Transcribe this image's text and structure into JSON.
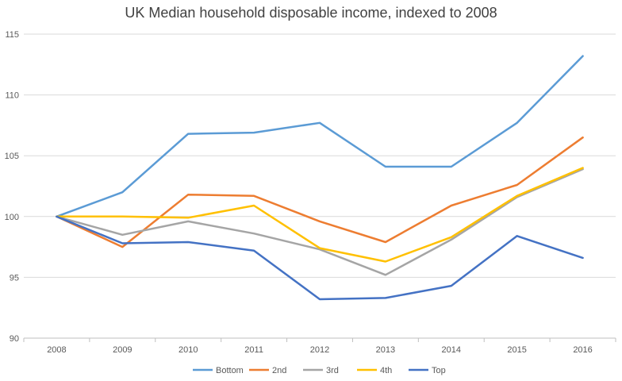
{
  "chart_data": {
    "type": "line",
    "title": "UK Median household disposable income, indexed to 2008",
    "xlabel": "",
    "ylabel": "",
    "categories": [
      "2008",
      "2009",
      "2010",
      "2011",
      "2012",
      "2013",
      "2014",
      "2015",
      "2016"
    ],
    "ylim": [
      90,
      115
    ],
    "yticks": [
      90,
      95,
      100,
      105,
      110,
      115
    ],
    "grid": true,
    "legend_position": "bottom",
    "series": [
      {
        "name": "Bottom",
        "color": "#5B9BD5",
        "values": [
          100,
          102.0,
          106.8,
          106.9,
          107.7,
          104.1,
          104.1,
          107.7,
          113.2
        ]
      },
      {
        "name": "2nd",
        "color": "#ED7D31",
        "values": [
          100,
          97.5,
          101.8,
          101.7,
          99.6,
          97.9,
          100.9,
          102.6,
          106.5
        ]
      },
      {
        "name": "3rd",
        "color": "#A5A5A5",
        "values": [
          100,
          98.5,
          99.6,
          98.6,
          97.3,
          95.2,
          98.1,
          101.6,
          103.9
        ]
      },
      {
        "name": "4th",
        "color": "#FFC000",
        "values": [
          100,
          100.0,
          99.9,
          100.9,
          97.4,
          96.3,
          98.3,
          101.7,
          104.0
        ]
      },
      {
        "name": "Top",
        "color": "#4472C4",
        "values": [
          100,
          97.8,
          97.9,
          97.2,
          93.2,
          93.3,
          94.3,
          98.4,
          96.6
        ]
      }
    ]
  }
}
